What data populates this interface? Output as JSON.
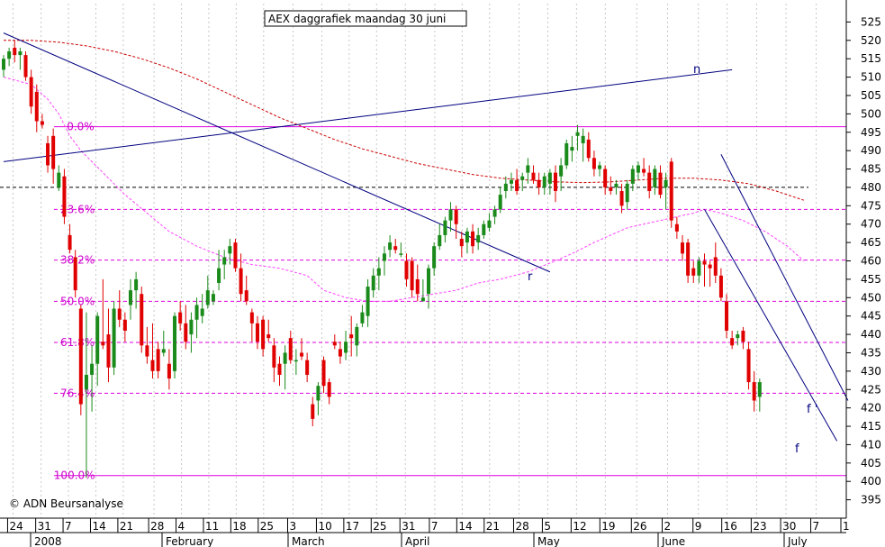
{
  "chart_data": {
    "type": "candlestick",
    "title": "AEX daggrafiek maandag 30 juni",
    "credit": "© ADN Beursanalyse",
    "ylim": [
      390,
      530
    ],
    "y_ticks": [
      395,
      400,
      405,
      410,
      415,
      420,
      425,
      430,
      435,
      440,
      445,
      450,
      455,
      460,
      465,
      470,
      475,
      480,
      485,
      490,
      495,
      500,
      505,
      510,
      515,
      520,
      525
    ],
    "x_tick_labels": [
      "24",
      "31",
      "7",
      "14",
      "21",
      "28",
      "4",
      "11",
      "18",
      "25",
      "3",
      "10",
      "17",
      "25",
      "31",
      "7",
      "14",
      "21",
      "28",
      "5",
      "12",
      "19",
      "26",
      "2",
      "9",
      "16",
      "23",
      "30",
      "7",
      "1"
    ],
    "month_labels": [
      "2008",
      "February",
      "March",
      "April",
      "May",
      "June",
      "July"
    ],
    "fib_levels": [
      {
        "label": "0.0%",
        "value": 496.5
      },
      {
        "label": "23.6%",
        "value": 474.0
      },
      {
        "label": "38.2%",
        "value": 460.2
      },
      {
        "label": "50.0%",
        "value": 449.0
      },
      {
        "label": "61.8%",
        "value": 437.8
      },
      {
        "label": "76.4%",
        "value": 424.0
      },
      {
        "label": "100.0%",
        "value": 401.6
      }
    ],
    "reference_line": {
      "value": 480.0
    },
    "trend_lines": [
      {
        "label": "n",
        "from": [
          0,
          487
        ],
        "to": [
          132,
          512
        ]
      },
      {
        "label": "r",
        "from": [
          0,
          522
        ],
        "to": [
          99,
          457
        ]
      },
      {
        "label": "f",
        "from": [
          127,
          474
        ],
        "to": [
          151,
          411
        ]
      },
      {
        "label": "f '",
        "from": [
          130,
          489
        ],
        "to": [
          153,
          422
        ]
      }
    ],
    "candles": [
      {
        "o": 512,
        "h": 516,
        "l": 510,
        "c": 515
      },
      {
        "o": 515,
        "h": 518,
        "l": 513,
        "c": 517
      },
      {
        "o": 518,
        "h": 520,
        "l": 514,
        "c": 516
      },
      {
        "o": 516,
        "h": 518,
        "l": 512,
        "c": 517
      },
      {
        "o": 516,
        "h": 517,
        "l": 509,
        "c": 510
      },
      {
        "o": 510,
        "h": 512,
        "l": 500,
        "c": 502
      },
      {
        "o": 506,
        "h": 508,
        "l": 495,
        "c": 498
      },
      {
        "o": 498,
        "h": 500,
        "l": 496,
        "c": 497
      },
      {
        "o": 492,
        "h": 494,
        "l": 484,
        "c": 486
      },
      {
        "o": 494,
        "h": 496,
        "l": 481,
        "c": 485
      },
      {
        "o": 480,
        "h": 486,
        "l": 479,
        "c": 484
      },
      {
        "o": 483,
        "h": 485,
        "l": 470,
        "c": 472
      },
      {
        "o": 467,
        "h": 470,
        "l": 462,
        "c": 463
      },
      {
        "o": 461,
        "h": 463,
        "l": 450,
        "c": 452
      },
      {
        "o": 447,
        "h": 448,
        "l": 418,
        "c": 421
      },
      {
        "o": 425,
        "h": 446,
        "l": 401,
        "c": 429
      },
      {
        "o": 429,
        "h": 437,
        "l": 419,
        "c": 432
      },
      {
        "o": 432,
        "h": 446,
        "l": 426,
        "c": 445
      },
      {
        "o": 438,
        "h": 455,
        "l": 436,
        "c": 437
      },
      {
        "o": 440,
        "h": 447,
        "l": 427,
        "c": 431
      },
      {
        "o": 431,
        "h": 449,
        "l": 429,
        "c": 447
      },
      {
        "o": 447,
        "h": 452,
        "l": 442,
        "c": 444
      },
      {
        "o": 444,
        "h": 446,
        "l": 438,
        "c": 441
      },
      {
        "o": 448,
        "h": 455,
        "l": 444,
        "c": 452
      },
      {
        "o": 452,
        "h": 457,
        "l": 447,
        "c": 455
      },
      {
        "o": 451,
        "h": 453,
        "l": 435,
        "c": 437
      },
      {
        "o": 437,
        "h": 442,
        "l": 432,
        "c": 434
      },
      {
        "o": 433,
        "h": 443,
        "l": 428,
        "c": 430
      },
      {
        "o": 436,
        "h": 438,
        "l": 428,
        "c": 430
      },
      {
        "o": 435,
        "h": 441,
        "l": 434,
        "c": 436
      },
      {
        "o": 432,
        "h": 436,
        "l": 425,
        "c": 428
      },
      {
        "o": 430,
        "h": 446,
        "l": 428,
        "c": 445
      },
      {
        "o": 446,
        "h": 449,
        "l": 441,
        "c": 443
      },
      {
        "o": 443,
        "h": 448,
        "l": 436,
        "c": 438
      },
      {
        "o": 440,
        "h": 446,
        "l": 435,
        "c": 444
      },
      {
        "o": 444,
        "h": 450,
        "l": 439,
        "c": 448
      },
      {
        "o": 445,
        "h": 451,
        "l": 443,
        "c": 447
      },
      {
        "o": 448,
        "h": 456,
        "l": 447,
        "c": 452
      },
      {
        "o": 449,
        "h": 452,
        "l": 448,
        "c": 451
      },
      {
        "o": 454,
        "h": 463,
        "l": 452,
        "c": 458
      },
      {
        "o": 459,
        "h": 463,
        "l": 455,
        "c": 461
      },
      {
        "o": 462,
        "h": 466,
        "l": 459,
        "c": 464
      },
      {
        "o": 465,
        "h": 466,
        "l": 457,
        "c": 458
      },
      {
        "o": 458,
        "h": 462,
        "l": 449,
        "c": 451
      },
      {
        "o": 452,
        "h": 456,
        "l": 448,
        "c": 449
      },
      {
        "o": 446,
        "h": 447,
        "l": 438,
        "c": 443
      },
      {
        "o": 443,
        "h": 445,
        "l": 436,
        "c": 438
      },
      {
        "o": 444,
        "h": 445,
        "l": 434,
        "c": 436
      },
      {
        "o": 440,
        "h": 444,
        "l": 438,
        "c": 439
      },
      {
        "o": 437,
        "h": 439,
        "l": 427,
        "c": 431
      },
      {
        "o": 432,
        "h": 434,
        "l": 426,
        "c": 429
      },
      {
        "o": 432,
        "h": 437,
        "l": 425,
        "c": 435
      },
      {
        "o": 439,
        "h": 441,
        "l": 432,
        "c": 433
      },
      {
        "o": 433,
        "h": 436,
        "l": 429,
        "c": 433
      },
      {
        "o": 435,
        "h": 439,
        "l": 433,
        "c": 434
      },
      {
        "o": 433,
        "h": 435,
        "l": 427,
        "c": 429
      },
      {
        "o": 421,
        "h": 423,
        "l": 415,
        "c": 417
      },
      {
        "o": 422,
        "h": 427,
        "l": 418,
        "c": 426
      },
      {
        "o": 433,
        "h": 434,
        "l": 424,
        "c": 426
      },
      {
        "o": 427,
        "h": 428,
        "l": 421,
        "c": 423
      },
      {
        "o": 438,
        "h": 440,
        "l": 436,
        "c": 437
      },
      {
        "o": 436,
        "h": 438,
        "l": 432,
        "c": 434
      },
      {
        "o": 435,
        "h": 441,
        "l": 433,
        "c": 438
      },
      {
        "o": 440,
        "h": 445,
        "l": 434,
        "c": 439
      },
      {
        "o": 437,
        "h": 443,
        "l": 434,
        "c": 442
      },
      {
        "o": 443,
        "h": 448,
        "l": 442,
        "c": 446
      },
      {
        "o": 445,
        "h": 455,
        "l": 442,
        "c": 453
      },
      {
        "o": 452,
        "h": 458,
        "l": 450,
        "c": 456
      },
      {
        "o": 456,
        "h": 461,
        "l": 452,
        "c": 458
      },
      {
        "o": 460,
        "h": 464,
        "l": 456,
        "c": 462
      },
      {
        "o": 463,
        "h": 467,
        "l": 461,
        "c": 465
      },
      {
        "o": 464,
        "h": 466,
        "l": 462,
        "c": 463
      },
      {
        "o": 462,
        "h": 465,
        "l": 461,
        "c": 462
      },
      {
        "o": 460,
        "h": 462,
        "l": 453,
        "c": 455
      },
      {
        "o": 460,
        "h": 461,
        "l": 450,
        "c": 452
      },
      {
        "o": 455,
        "h": 459,
        "l": 449,
        "c": 451
      },
      {
        "o": 449,
        "h": 455,
        "l": 449,
        "c": 450
      },
      {
        "o": 451,
        "h": 459,
        "l": 447,
        "c": 458
      },
      {
        "o": 458,
        "h": 465,
        "l": 456,
        "c": 464
      },
      {
        "o": 464,
        "h": 470,
        "l": 463,
        "c": 467
      },
      {
        "o": 467,
        "h": 472,
        "l": 465,
        "c": 471
      },
      {
        "o": 471,
        "h": 476,
        "l": 468,
        "c": 474
      },
      {
        "o": 474,
        "h": 475,
        "l": 466,
        "c": 470
      },
      {
        "o": 466,
        "h": 468,
        "l": 461,
        "c": 464
      },
      {
        "o": 465,
        "h": 469,
        "l": 462,
        "c": 468
      },
      {
        "o": 468,
        "h": 470,
        "l": 462,
        "c": 464
      },
      {
        "o": 465,
        "h": 469,
        "l": 463,
        "c": 467
      },
      {
        "o": 467,
        "h": 471,
        "l": 466,
        "c": 470
      },
      {
        "o": 469,
        "h": 473,
        "l": 468,
        "c": 471
      },
      {
        "o": 472,
        "h": 475,
        "l": 470,
        "c": 474
      },
      {
        "o": 474,
        "h": 480,
        "l": 473,
        "c": 478
      },
      {
        "o": 479,
        "h": 483,
        "l": 477,
        "c": 481
      },
      {
        "o": 481,
        "h": 484,
        "l": 479,
        "c": 482
      },
      {
        "o": 482,
        "h": 485,
        "l": 478,
        "c": 479
      },
      {
        "o": 482,
        "h": 484,
        "l": 479,
        "c": 483
      },
      {
        "o": 484,
        "h": 488,
        "l": 481,
        "c": 486
      },
      {
        "o": 484,
        "h": 486,
        "l": 481,
        "c": 482
      },
      {
        "o": 482,
        "h": 484,
        "l": 478,
        "c": 480
      },
      {
        "o": 480,
        "h": 484,
        "l": 478,
        "c": 483
      },
      {
        "o": 481,
        "h": 485,
        "l": 478,
        "c": 484
      },
      {
        "o": 484,
        "h": 486,
        "l": 476,
        "c": 479
      },
      {
        "o": 483,
        "h": 488,
        "l": 479,
        "c": 486
      },
      {
        "o": 486,
        "h": 493,
        "l": 485,
        "c": 492
      },
      {
        "o": 490,
        "h": 494,
        "l": 487,
        "c": 491
      },
      {
        "o": 494,
        "h": 497,
        "l": 490,
        "c": 495
      },
      {
        "o": 492,
        "h": 496,
        "l": 487,
        "c": 494
      },
      {
        "o": 493,
        "h": 495,
        "l": 487,
        "c": 488
      },
      {
        "o": 488,
        "h": 490,
        "l": 483,
        "c": 485
      },
      {
        "o": 485,
        "h": 487,
        "l": 483,
        "c": 486
      },
      {
        "o": 485,
        "h": 486,
        "l": 478,
        "c": 480
      },
      {
        "o": 480,
        "h": 483,
        "l": 478,
        "c": 479
      },
      {
        "o": 480,
        "h": 482,
        "l": 478,
        "c": 481
      },
      {
        "o": 479,
        "h": 481,
        "l": 473,
        "c": 475
      },
      {
        "o": 476,
        "h": 482,
        "l": 474,
        "c": 481
      },
      {
        "o": 481,
        "h": 486,
        "l": 479,
        "c": 485
      },
      {
        "o": 484,
        "h": 487,
        "l": 482,
        "c": 486
      },
      {
        "o": 485,
        "h": 488,
        "l": 483,
        "c": 484
      },
      {
        "o": 484,
        "h": 486,
        "l": 477,
        "c": 479
      },
      {
        "o": 480,
        "h": 486,
        "l": 478,
        "c": 485
      },
      {
        "o": 484,
        "h": 486,
        "l": 477,
        "c": 478
      },
      {
        "o": 480,
        "h": 484,
        "l": 474,
        "c": 482
      },
      {
        "o": 487,
        "h": 488,
        "l": 469,
        "c": 471
      },
      {
        "o": 470,
        "h": 472,
        "l": 466,
        "c": 468
      },
      {
        "o": 465,
        "h": 467,
        "l": 460,
        "c": 462
      },
      {
        "o": 465,
        "h": 466,
        "l": 454,
        "c": 456
      },
      {
        "o": 458,
        "h": 460,
        "l": 454,
        "c": 456
      },
      {
        "o": 456,
        "h": 461,
        "l": 454,
        "c": 460
      },
      {
        "o": 460,
        "h": 462,
        "l": 453,
        "c": 459
      },
      {
        "o": 459,
        "h": 460,
        "l": 453,
        "c": 458
      },
      {
        "o": 461,
        "h": 465,
        "l": 454,
        "c": 456
      },
      {
        "o": 456,
        "h": 458,
        "l": 449,
        "c": 450
      },
      {
        "o": 449,
        "h": 451,
        "l": 439,
        "c": 441
      },
      {
        "o": 439,
        "h": 441,
        "l": 436,
        "c": 437
      },
      {
        "o": 439,
        "h": 441,
        "l": 437,
        "c": 440
      },
      {
        "o": 441,
        "h": 442,
        "l": 436,
        "c": 438
      },
      {
        "o": 436,
        "h": 438,
        "l": 425,
        "c": 427
      },
      {
        "o": 427,
        "h": 430,
        "l": 419,
        "c": 422
      },
      {
        "o": 423,
        "h": 428,
        "l": 419,
        "c": 427
      }
    ],
    "moving_averages": [
      {
        "style": "red-dashed",
        "points": [
          [
            0,
            520
          ],
          [
            5,
            520
          ],
          [
            10,
            519.5
          ],
          [
            15,
            518.5
          ],
          [
            20,
            517
          ],
          [
            25,
            515
          ],
          [
            30,
            512.5
          ],
          [
            35,
            509.5
          ],
          [
            40,
            506
          ],
          [
            45,
            502.5
          ],
          [
            50,
            499
          ],
          [
            55,
            496
          ],
          [
            60,
            493
          ],
          [
            65,
            490.5
          ],
          [
            70,
            488.5
          ],
          [
            75,
            486.5
          ],
          [
            80,
            485
          ],
          [
            85,
            483.5
          ],
          [
            90,
            482.5
          ],
          [
            95,
            482
          ],
          [
            100,
            481.5
          ],
          [
            105,
            481.3
          ],
          [
            110,
            481.5
          ],
          [
            115,
            482
          ],
          [
            120,
            482.5
          ],
          [
            125,
            482.5
          ],
          [
            130,
            482
          ],
          [
            135,
            481
          ],
          [
            140,
            479
          ],
          [
            145,
            476.5
          ]
        ]
      },
      {
        "style": "magenta-dashed",
        "points": [
          [
            0,
            510
          ],
          [
            5,
            508
          ],
          [
            8,
            504
          ],
          [
            10,
            500
          ],
          [
            12,
            494
          ],
          [
            14,
            490
          ],
          [
            18,
            484
          ],
          [
            22,
            478
          ],
          [
            26,
            473
          ],
          [
            30,
            468
          ],
          [
            35,
            464
          ],
          [
            40,
            461
          ],
          [
            45,
            459
          ],
          [
            50,
            458
          ],
          [
            55,
            456
          ],
          [
            58,
            452
          ],
          [
            62,
            450
          ],
          [
            66,
            449
          ],
          [
            70,
            449
          ],
          [
            74,
            450
          ],
          [
            78,
            451
          ],
          [
            82,
            452
          ],
          [
            86,
            454
          ],
          [
            90,
            455
          ],
          [
            95,
            457
          ],
          [
            100,
            460
          ],
          [
            103,
            462
          ],
          [
            107,
            465
          ],
          [
            110,
            467
          ],
          [
            113,
            469
          ],
          [
            116,
            470
          ],
          [
            119,
            471
          ],
          [
            122,
            472
          ],
          [
            125,
            473
          ],
          [
            127,
            474
          ],
          [
            130,
            473
          ],
          [
            134,
            471
          ],
          [
            138,
            468
          ],
          [
            142,
            464
          ],
          [
            145,
            460
          ]
        ]
      }
    ]
  }
}
